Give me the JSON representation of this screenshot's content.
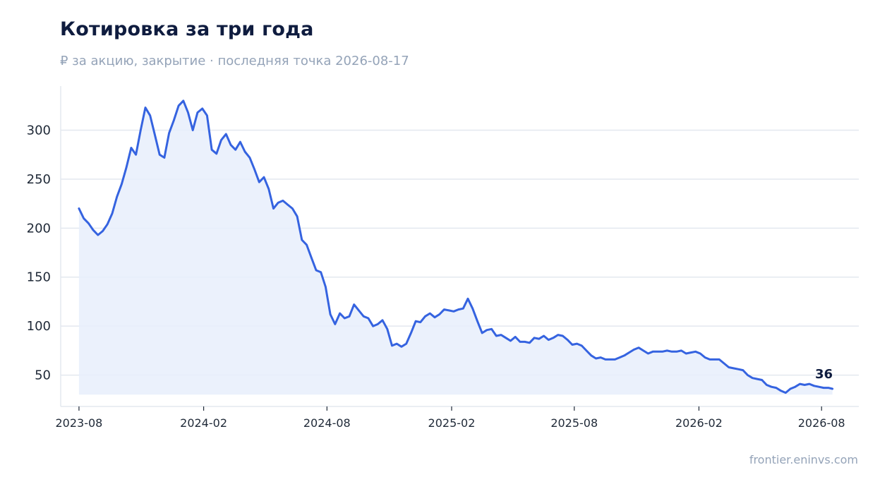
{
  "title": "Котировка за три года",
  "subtitle": "₽ за акцию, закрытие · последняя точка 2026-08-17",
  "source": "frontier.eninvs.com",
  "colors": {
    "line": "#3563e0",
    "fill": "#e8eefb",
    "grid": "#e3e8ef",
    "axis": "#e3e8ef",
    "text": "#0f1c3f",
    "muted": "#94a3b8"
  },
  "chart_data": {
    "type": "area",
    "title": "Котировка за три года",
    "subtitle": "₽ за акцию, закрытие · последняя точка 2026-08-17",
    "xlabel": "",
    "ylabel": "",
    "ylim": [
      18,
      345
    ],
    "xlim": [
      "2023-07-05",
      "2026-09-25"
    ],
    "grid": "horizontal",
    "y_ticks": [
      50,
      100,
      150,
      200,
      250,
      300
    ],
    "x_ticks": [
      "2023-08",
      "2024-02",
      "2024-08",
      "2025-02",
      "2025-08",
      "2026-02",
      "2026-08"
    ],
    "last_value_label": "36",
    "series": [
      {
        "points": [
          [
            "2023-08-01",
            220
          ],
          [
            "2023-08-08",
            210
          ],
          [
            "2023-08-15",
            205
          ],
          [
            "2023-08-22",
            198
          ],
          [
            "2023-08-29",
            193
          ],
          [
            "2023-09-05",
            197
          ],
          [
            "2023-09-12",
            204
          ],
          [
            "2023-09-19",
            215
          ],
          [
            "2023-09-26",
            232
          ],
          [
            "2023-10-03",
            245
          ],
          [
            "2023-10-10",
            262
          ],
          [
            "2023-10-17",
            282
          ],
          [
            "2023-10-24",
            275
          ],
          [
            "2023-10-31",
            300
          ],
          [
            "2023-11-07",
            323
          ],
          [
            "2023-11-14",
            315
          ],
          [
            "2023-11-21",
            295
          ],
          [
            "2023-11-28",
            275
          ],
          [
            "2023-12-05",
            272
          ],
          [
            "2023-12-12",
            297
          ],
          [
            "2023-12-19",
            310
          ],
          [
            "2023-12-26",
            325
          ],
          [
            "2024-01-02",
            330
          ],
          [
            "2024-01-09",
            318
          ],
          [
            "2024-01-16",
            300
          ],
          [
            "2024-01-23",
            318
          ],
          [
            "2024-01-30",
            322
          ],
          [
            "2024-02-06",
            315
          ],
          [
            "2024-02-13",
            280
          ],
          [
            "2024-02-20",
            276
          ],
          [
            "2024-02-27",
            290
          ],
          [
            "2024-03-05",
            296
          ],
          [
            "2024-03-12",
            285
          ],
          [
            "2024-03-19",
            280
          ],
          [
            "2024-03-26",
            288
          ],
          [
            "2024-04-02",
            278
          ],
          [
            "2024-04-09",
            272
          ],
          [
            "2024-04-16",
            260
          ],
          [
            "2024-04-23",
            247
          ],
          [
            "2024-04-30",
            252
          ],
          [
            "2024-05-07",
            240
          ],
          [
            "2024-05-14",
            220
          ],
          [
            "2024-05-21",
            226
          ],
          [
            "2024-05-28",
            228
          ],
          [
            "2024-06-04",
            224
          ],
          [
            "2024-06-11",
            220
          ],
          [
            "2024-06-18",
            212
          ],
          [
            "2024-06-25",
            188
          ],
          [
            "2024-07-02",
            183
          ],
          [
            "2024-07-09",
            170
          ],
          [
            "2024-07-16",
            157
          ],
          [
            "2024-07-23",
            155
          ],
          [
            "2024-07-30",
            140
          ],
          [
            "2024-08-06",
            112
          ],
          [
            "2024-08-13",
            102
          ],
          [
            "2024-08-20",
            113
          ],
          [
            "2024-08-27",
            108
          ],
          [
            "2024-09-03",
            110
          ],
          [
            "2024-09-10",
            122
          ],
          [
            "2024-09-17",
            116
          ],
          [
            "2024-09-24",
            110
          ],
          [
            "2024-10-01",
            108
          ],
          [
            "2024-10-08",
            100
          ],
          [
            "2024-10-15",
            102
          ],
          [
            "2024-10-22",
            106
          ],
          [
            "2024-10-29",
            97
          ],
          [
            "2024-11-05",
            80
          ],
          [
            "2024-11-12",
            82
          ],
          [
            "2024-11-19",
            79
          ],
          [
            "2024-11-26",
            82
          ],
          [
            "2024-12-03",
            93
          ],
          [
            "2024-12-10",
            105
          ],
          [
            "2024-12-17",
            104
          ],
          [
            "2024-12-24",
            110
          ],
          [
            "2024-12-31",
            113
          ],
          [
            "2025-01-07",
            109
          ],
          [
            "2025-01-14",
            112
          ],
          [
            "2025-01-21",
            117
          ],
          [
            "2025-01-28",
            116
          ],
          [
            "2025-02-04",
            115
          ],
          [
            "2025-02-11",
            117
          ],
          [
            "2025-02-18",
            118
          ],
          [
            "2025-02-25",
            128
          ],
          [
            "2025-03-04",
            118
          ],
          [
            "2025-03-11",
            105
          ],
          [
            "2025-03-18",
            93
          ],
          [
            "2025-03-25",
            96
          ],
          [
            "2025-04-01",
            97
          ],
          [
            "2025-04-08",
            90
          ],
          [
            "2025-04-15",
            91
          ],
          [
            "2025-04-22",
            88
          ],
          [
            "2025-04-29",
            85
          ],
          [
            "2025-05-06",
            89
          ],
          [
            "2025-05-13",
            84
          ],
          [
            "2025-05-20",
            84
          ],
          [
            "2025-05-27",
            83
          ],
          [
            "2025-06-03",
            88
          ],
          [
            "2025-06-10",
            87
          ],
          [
            "2025-06-17",
            90
          ],
          [
            "2025-06-24",
            86
          ],
          [
            "2025-07-01",
            88
          ],
          [
            "2025-07-08",
            91
          ],
          [
            "2025-07-15",
            90
          ],
          [
            "2025-07-22",
            86
          ],
          [
            "2025-07-29",
            81
          ],
          [
            "2025-08-05",
            82
          ],
          [
            "2025-08-12",
            80
          ],
          [
            "2025-08-19",
            75
          ],
          [
            "2025-08-26",
            70
          ],
          [
            "2025-09-02",
            67
          ],
          [
            "2025-09-09",
            68
          ],
          [
            "2025-09-16",
            66
          ],
          [
            "2025-09-23",
            66
          ],
          [
            "2025-09-30",
            66
          ],
          [
            "2025-10-07",
            68
          ],
          [
            "2025-10-14",
            70
          ],
          [
            "2025-10-21",
            73
          ],
          [
            "2025-10-28",
            76
          ],
          [
            "2025-11-04",
            78
          ],
          [
            "2025-11-11",
            75
          ],
          [
            "2025-11-18",
            72
          ],
          [
            "2025-11-25",
            74
          ],
          [
            "2025-12-02",
            74
          ],
          [
            "2025-12-09",
            74
          ],
          [
            "2025-12-16",
            75
          ],
          [
            "2025-12-23",
            74
          ],
          [
            "2025-12-30",
            74
          ],
          [
            "2026-01-06",
            75
          ],
          [
            "2026-01-13",
            72
          ],
          [
            "2026-01-20",
            73
          ],
          [
            "2026-01-27",
            74
          ],
          [
            "2026-02-03",
            72
          ],
          [
            "2026-02-10",
            68
          ],
          [
            "2026-02-17",
            66
          ],
          [
            "2026-02-24",
            66
          ],
          [
            "2026-03-03",
            66
          ],
          [
            "2026-03-10",
            62
          ],
          [
            "2026-03-17",
            58
          ],
          [
            "2026-03-24",
            57
          ],
          [
            "2026-03-31",
            56
          ],
          [
            "2026-04-07",
            55
          ],
          [
            "2026-04-14",
            50
          ],
          [
            "2026-04-21",
            47
          ],
          [
            "2026-04-28",
            46
          ],
          [
            "2026-05-05",
            45
          ],
          [
            "2026-05-12",
            40
          ],
          [
            "2026-05-19",
            38
          ],
          [
            "2026-05-26",
            37
          ],
          [
            "2026-06-02",
            34
          ],
          [
            "2026-06-09",
            32
          ],
          [
            "2026-06-16",
            36
          ],
          [
            "2026-06-23",
            38
          ],
          [
            "2026-06-30",
            41
          ],
          [
            "2026-07-07",
            40
          ],
          [
            "2026-07-14",
            41
          ],
          [
            "2026-07-21",
            39
          ],
          [
            "2026-07-28",
            38
          ],
          [
            "2026-08-04",
            37
          ],
          [
            "2026-08-11",
            37
          ],
          [
            "2026-08-17",
            36
          ]
        ]
      }
    ]
  }
}
